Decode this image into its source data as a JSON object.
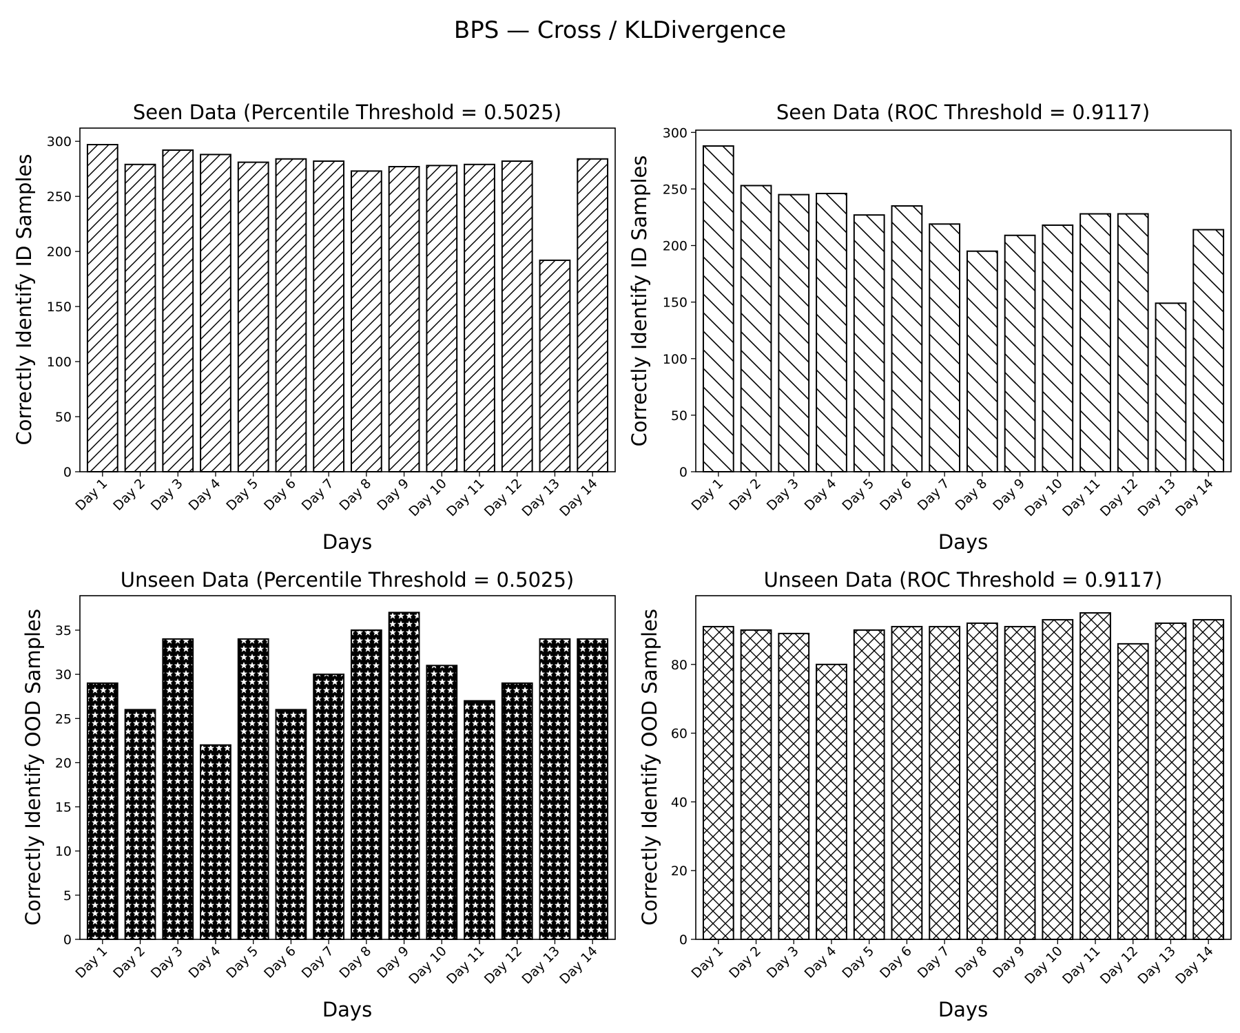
{
  "figure": {
    "title": "BPS — Cross / KLDivergence",
    "hatch_patterns": [
      "diagonal-forward",
      "diagonal-backward",
      "stars",
      "crosshatch"
    ]
  },
  "chart_data": [
    {
      "type": "bar",
      "title": "Seen Data (Percentile Threshold = 0.5025)",
      "xlabel": "Days",
      "ylabel": "Correctly Identify ID Samples",
      "categories": [
        "Day 1",
        "Day 2",
        "Day 3",
        "Day 4",
        "Day 5",
        "Day 6",
        "Day 7",
        "Day 8",
        "Day 9",
        "Day 10",
        "Day 11",
        "Day 12",
        "Day 13",
        "Day 14"
      ],
      "values": [
        297,
        279,
        292,
        288,
        281,
        284,
        282,
        273,
        277,
        278,
        279,
        282,
        192,
        284
      ],
      "ylim": [
        0,
        312
      ],
      "yticks": [
        0,
        50,
        100,
        150,
        200,
        250,
        300
      ],
      "grid": false,
      "hatch": "diagonal-forward",
      "bar_color": "#ffffff"
    },
    {
      "type": "bar",
      "title": "Seen Data (ROC Threshold = 0.9117)",
      "xlabel": "Days",
      "ylabel": "Correctly Identify ID Samples",
      "categories": [
        "Day 1",
        "Day 2",
        "Day 3",
        "Day 4",
        "Day 5",
        "Day 6",
        "Day 7",
        "Day 8",
        "Day 9",
        "Day 10",
        "Day 11",
        "Day 12",
        "Day 13",
        "Day 14"
      ],
      "values": [
        288,
        253,
        245,
        246,
        227,
        235,
        219,
        195,
        209,
        218,
        228,
        228,
        149,
        214
      ],
      "ylim": [
        0,
        302
      ],
      "yticks": [
        0,
        50,
        100,
        150,
        200,
        250,
        300
      ],
      "grid": false,
      "hatch": "diagonal-backward",
      "bar_color": "#ffffff"
    },
    {
      "type": "bar",
      "title": "Unseen Data (Percentile Threshold = 0.5025)",
      "xlabel": "Days",
      "ylabel": "Correctly Identify OOD Samples",
      "categories": [
        "Day 1",
        "Day 2",
        "Day 3",
        "Day 4",
        "Day 5",
        "Day 6",
        "Day 7",
        "Day 8",
        "Day 9",
        "Day 10",
        "Day 11",
        "Day 12",
        "Day 13",
        "Day 14"
      ],
      "values": [
        29,
        26,
        34,
        22,
        34,
        26,
        30,
        35,
        37,
        31,
        27,
        29,
        34,
        34
      ],
      "ylim": [
        0,
        38.9
      ],
      "yticks": [
        0,
        5,
        10,
        15,
        20,
        25,
        30,
        35
      ],
      "grid": false,
      "hatch": "stars",
      "bar_color": "#ffffff"
    },
    {
      "type": "bar",
      "title": "Unseen Data (ROC Threshold = 0.9117)",
      "xlabel": "Days",
      "ylabel": "Correctly Identify OOD Samples",
      "categories": [
        "Day 1",
        "Day 2",
        "Day 3",
        "Day 4",
        "Day 5",
        "Day 6",
        "Day 7",
        "Day 8",
        "Day 9",
        "Day 10",
        "Day 11",
        "Day 12",
        "Day 13",
        "Day 14"
      ],
      "values": [
        91,
        90,
        89,
        80,
        90,
        91,
        91,
        92,
        91,
        93,
        95,
        86,
        92,
        93
      ],
      "ylim": [
        0,
        100
      ],
      "yticks": [
        0,
        20,
        40,
        60,
        80
      ],
      "grid": false,
      "hatch": "crosshatch",
      "bar_color": "#ffffff"
    }
  ]
}
